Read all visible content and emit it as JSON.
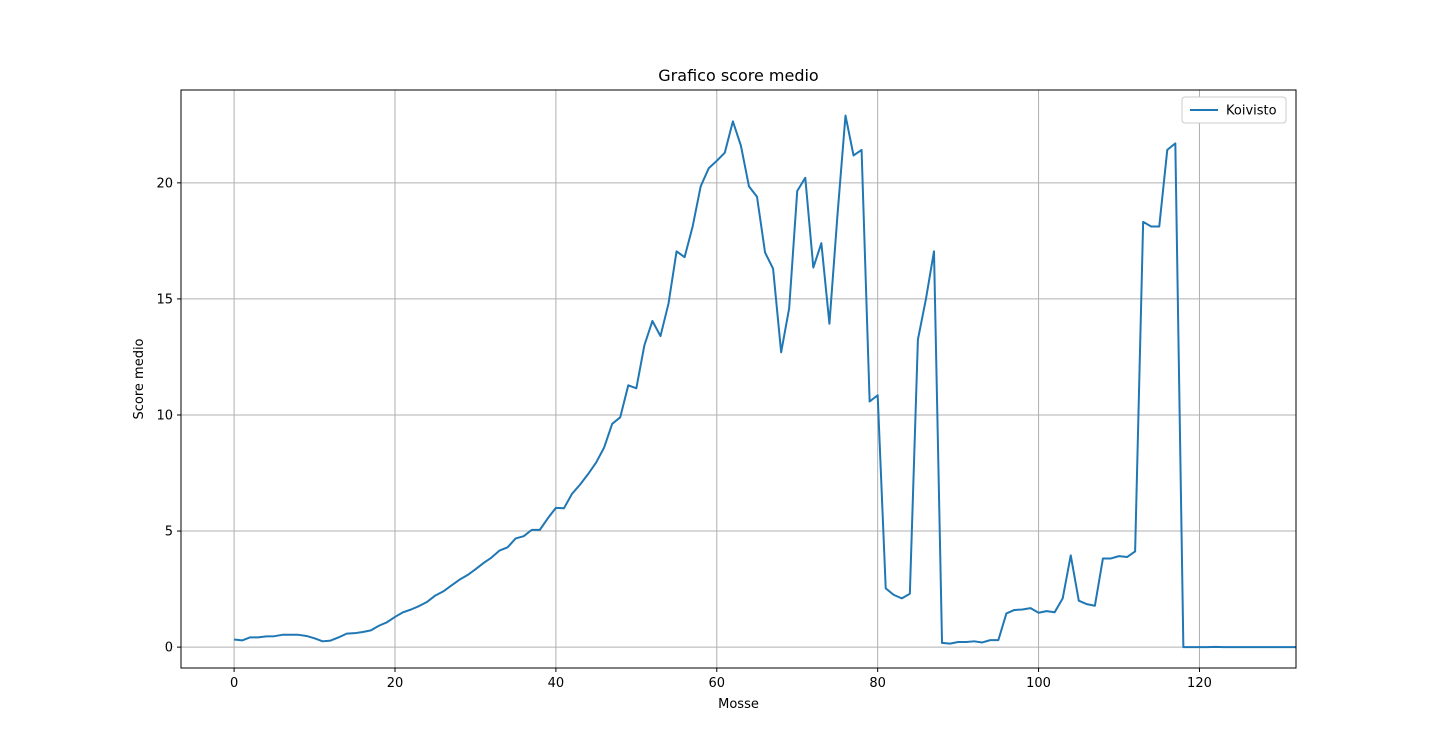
{
  "chart_data": {
    "type": "line",
    "title": "Grafico score medio",
    "xlabel": "Mosse",
    "ylabel": "Score medio",
    "xlim": [
      -6.6,
      132
    ],
    "ylim": [
      -0.9,
      24
    ],
    "xticks": [
      0,
      20,
      40,
      60,
      80,
      100,
      120
    ],
    "yticks": [
      0,
      5,
      10,
      15,
      20
    ],
    "grid": true,
    "legend_position": "top-right",
    "line_color": "#1f77b4",
    "series": [
      {
        "name": "Koivisto",
        "color": "#1f77b4",
        "x": [
          0,
          1,
          2,
          3,
          4,
          5,
          6,
          7,
          8,
          9,
          10,
          11,
          12,
          13,
          14,
          15,
          16,
          17,
          18,
          19,
          20,
          21,
          22,
          23,
          24,
          25,
          26,
          27,
          28,
          29,
          30,
          31,
          32,
          33,
          34,
          35,
          36,
          37,
          38,
          39,
          40,
          41,
          42,
          43,
          44,
          45,
          46,
          47,
          48,
          49,
          50,
          51,
          52,
          53,
          54,
          55,
          56,
          57,
          58,
          59,
          60,
          61,
          62,
          63,
          64,
          65,
          66,
          67,
          68,
          69,
          70,
          71,
          72,
          73,
          74,
          75,
          76,
          77,
          78,
          79,
          80,
          81,
          82,
          83,
          84,
          85,
          86,
          87,
          88,
          89,
          90,
          91,
          92,
          93,
          94,
          95,
          96,
          97,
          98,
          99,
          100,
          101,
          102,
          103,
          104,
          105,
          106,
          107,
          108,
          109,
          110,
          111,
          112,
          113,
          114,
          115,
          116,
          117,
          118,
          119,
          120,
          121,
          122,
          123,
          124,
          125,
          126,
          127,
          128,
          129,
          130,
          131,
          132
        ],
        "values": [
          0.33,
          0.29,
          0.42,
          0.42,
          0.46,
          0.47,
          0.53,
          0.53,
          0.53,
          0.48,
          0.38,
          0.25,
          0.28,
          0.42,
          0.58,
          0.6,
          0.65,
          0.72,
          0.92,
          1.07,
          1.3,
          1.5,
          1.62,
          1.77,
          1.95,
          2.22,
          2.4,
          2.65,
          2.9,
          3.1,
          3.35,
          3.62,
          3.86,
          4.16,
          4.3,
          4.68,
          4.78,
          5.05,
          5.05,
          5.55,
          6.0,
          5.98,
          6.6,
          7.0,
          7.45,
          7.95,
          8.6,
          9.62,
          9.9,
          11.28,
          11.15,
          13.0,
          14.05,
          13.4,
          14.8,
          17.05,
          16.8,
          18.12,
          19.85,
          20.63,
          20.95,
          21.3,
          22.65,
          21.6,
          19.85,
          19.4,
          17.0,
          16.3,
          12.7,
          14.6,
          19.65,
          20.22,
          16.35,
          17.4,
          13.93,
          18.6,
          22.9,
          21.18,
          21.42,
          10.58,
          10.85,
          2.53,
          2.25,
          2.1,
          2.3,
          13.25,
          15.0,
          17.05,
          0.18,
          0.15,
          0.22,
          0.22,
          0.25,
          0.2,
          0.3,
          0.3,
          1.45,
          1.6,
          1.62,
          1.68,
          1.48,
          1.55,
          1.5,
          2.1,
          3.95,
          2.0,
          1.85,
          1.78,
          3.82,
          3.82,
          3.92,
          3.88,
          4.12,
          18.32,
          18.12,
          18.12,
          21.42,
          21.7,
          0.0,
          0.0,
          0.0,
          0.0,
          0.01,
          0.0,
          0.0,
          0.0,
          0.0,
          0.0,
          0.0,
          0.0,
          0.0,
          0.0,
          0.0
        ]
      }
    ]
  }
}
